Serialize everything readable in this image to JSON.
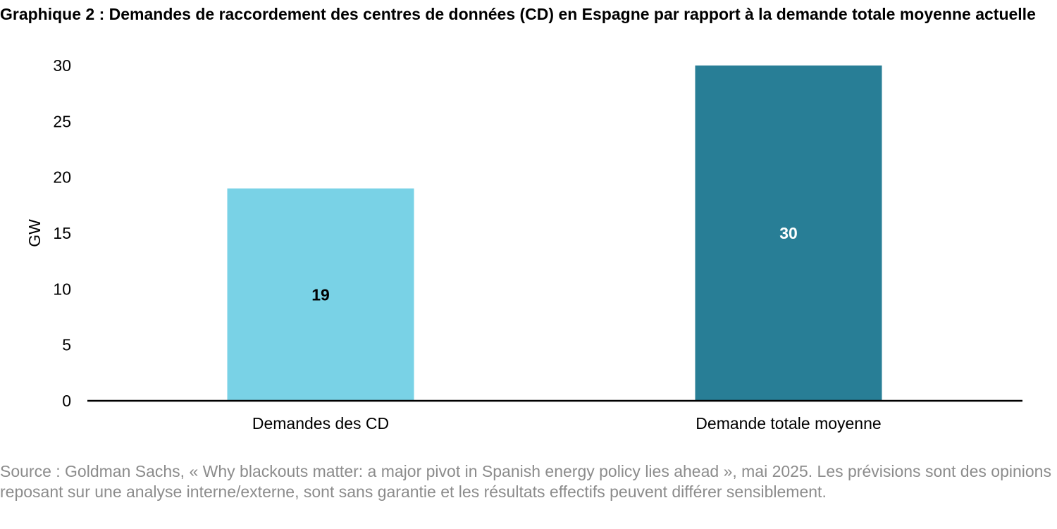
{
  "title": "Graphique 2 : Demandes de raccordement des centres de données (CD) en Espagne par rapport à la demande totale moyenne actuelle",
  "source": "Source : Goldman Sachs, « Why blackouts matter: a major pivot in Spanish energy policy lies ahead », mai 2025. Les prévisions sont des opinions reposant sur une analyse interne/externe, sont sans garantie et les résultats effectifs peuvent différer sensiblement.",
  "colors": {
    "bar_light": "#79d2e6",
    "bar_dark": "#287e96",
    "axis": "#000000",
    "source_text": "#8c8c8c"
  },
  "chart_data": {
    "type": "bar",
    "title": "Graphique 2 : Demandes de raccordement des centres de données (CD) en Espagne par rapport à la demande totale moyenne actuelle",
    "categories": [
      "Demandes des CD",
      "Demande totale moyenne"
    ],
    "values": [
      19,
      30
    ],
    "data_labels": [
      "19",
      "30"
    ],
    "bar_colors": [
      "#79d2e6",
      "#287e96"
    ],
    "label_colors": [
      "#000000",
      "#ffffff"
    ],
    "xlabel": "",
    "ylabel": "GW",
    "ylim": [
      0,
      30
    ],
    "yticks": [
      0,
      5,
      10,
      15,
      20,
      25,
      30
    ],
    "grid": false,
    "legend": "none"
  }
}
